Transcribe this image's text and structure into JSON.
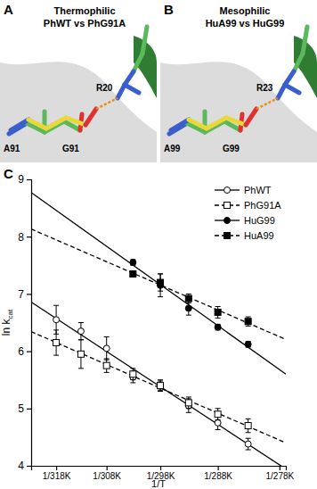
{
  "panels": [
    {
      "letter": "A",
      "title": "Thermophilic",
      "subtitle": "PhWT vs PhG91A",
      "labels": [
        "A91",
        "G91",
        "R20"
      ]
    },
    {
      "letter": "B",
      "title": "Mesophilic",
      "subtitle": "HuA99 vs HuG99",
      "labels": [
        "A99",
        "G99",
        "R23"
      ]
    }
  ],
  "chart_data": {
    "type": "scatter",
    "title": "C",
    "xlabel": "1/T",
    "ylabel": {
      "text": "ln k",
      "subscript": "cat"
    },
    "xlim": [
      0.003094,
      0.00361
    ],
    "ylim": [
      4,
      9
    ],
    "xticks": [
      {
        "value": 0.0031447,
        "label": "1/318K"
      },
      {
        "value": 0.0032468,
        "label": "1/308K"
      },
      {
        "value": 0.0033557,
        "label": "1/298K"
      },
      {
        "value": 0.0034722,
        "label": "1/288K"
      },
      {
        "value": 0.0035971,
        "label": "1/278K"
      }
    ],
    "yticks": [
      4,
      5,
      6,
      7,
      8,
      9
    ],
    "legend": "top-right",
    "series": [
      {
        "name": "PhWT",
        "color": "#000000",
        "marker": "open-circle",
        "line_style": "solid",
        "x": [
          0.0031447,
          0.0031949,
          0.0032468,
          0.0033003,
          0.0033557,
          0.003413,
          0.0034722,
          0.0035336
        ],
        "values": [
          6.55,
          6.35,
          6.05,
          5.55,
          5.4,
          5.05,
          4.75,
          4.38
        ],
        "errors": [
          0.25,
          0.15,
          0.2,
          0.1,
          0.1,
          0.12,
          0.12,
          0.1
        ]
      },
      {
        "name": "PhG91A",
        "color": "#000000",
        "marker": "open-square",
        "line_style": "dashed",
        "x": [
          0.0031447,
          0.0031949,
          0.0032468,
          0.0033003,
          0.0033557,
          0.003413,
          0.0034722,
          0.0035336
        ],
        "values": [
          6.15,
          5.95,
          5.75,
          5.6,
          5.4,
          5.1,
          4.9,
          4.7
        ],
        "errors": [
          0.22,
          0.25,
          0.12,
          0.1,
          0.08,
          0.1,
          0.1,
          0.12
        ]
      },
      {
        "name": "HuG99",
        "color": "#000000",
        "marker": "filled-circle",
        "line_style": "solid",
        "x": [
          0.0033003,
          0.0033557,
          0.003413,
          0.0034722,
          0.0035336
        ],
        "values": [
          7.55,
          7.15,
          6.75,
          6.42,
          6.12
        ],
        "errors": [
          0.05,
          0.2,
          0.12,
          0.05,
          0.05
        ]
      },
      {
        "name": "HuA99",
        "color": "#000000",
        "marker": "filled-square",
        "line_style": "dashed",
        "x": [
          0.0033003,
          0.0033557,
          0.003413,
          0.0034722,
          0.0035336
        ],
        "values": [
          7.35,
          7.2,
          6.92,
          6.68,
          6.52
        ],
        "errors": [
          0.05,
          0.15,
          0.08,
          0.1,
          0.08
        ]
      }
    ]
  }
}
